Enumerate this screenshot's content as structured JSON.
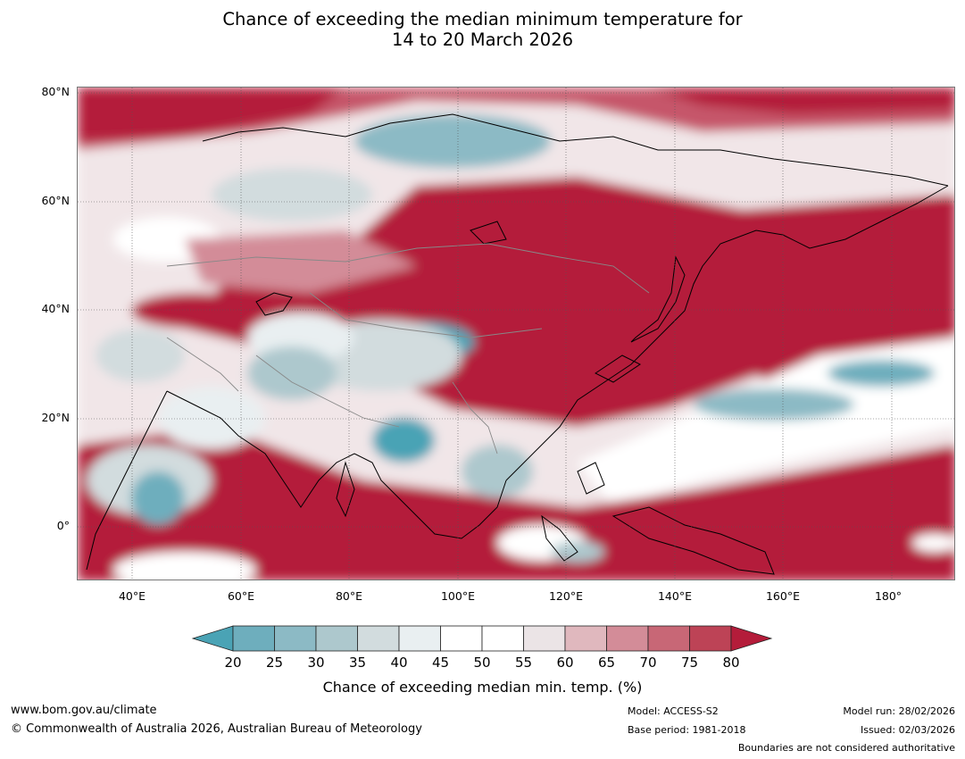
{
  "title": {
    "line1": "Chance of exceeding the median minimum temperature for",
    "line2": "14 to 20 March 2026"
  },
  "map": {
    "lat_labels": [
      "80°N",
      "60°N",
      "40°N",
      "20°N",
      "0°"
    ],
    "lon_labels": [
      "40°E",
      "60°E",
      "80°E",
      "100°E",
      "120°E",
      "140°E",
      "160°E",
      "180°"
    ],
    "region": "Asia",
    "lon_range": [
      30,
      192
    ],
    "lat_range": [
      -10,
      81
    ]
  },
  "colorbar": {
    "ticks": [
      "20",
      "25",
      "30",
      "35",
      "40",
      "45",
      "50",
      "55",
      "60",
      "65",
      "70",
      "75",
      "80"
    ],
    "colors": [
      "#4aa3b5",
      "#6eaebd",
      "#8cbac5",
      "#adc8cd",
      "#d2dcde",
      "#e9eff1",
      "#ffffff",
      "#ffffff",
      "#ebe4e6",
      "#e0b8be",
      "#d38c98",
      "#c86776",
      "#bd4356",
      "#b41c3a"
    ],
    "label": "Chance of exceeding median min. temp. (%)"
  },
  "footer": {
    "website": "www.bom.gov.au/climate",
    "copyright": "© Commonwealth of Australia 2026, Australian Bureau of Meteorology",
    "model": "Model: ACCESS-S2",
    "base_period": "Base period: 1981-2018",
    "model_run": "Model run: 28/02/2026",
    "issued": "Issued: 02/03/2026",
    "disclaimer": "Boundaries are not considered authoritative"
  }
}
